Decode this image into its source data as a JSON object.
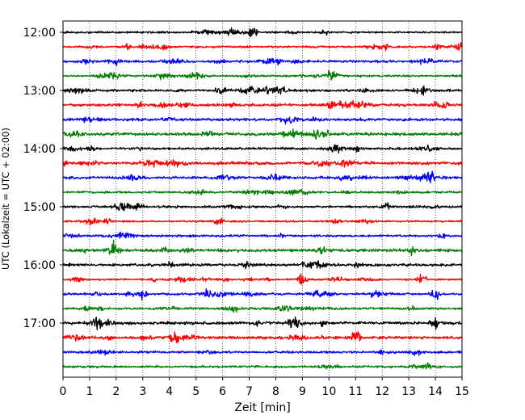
{
  "chart_data": {
    "type": "line",
    "subtype": "helicorder",
    "title": "",
    "xlabel": "Zeit  [min]",
    "ylabel": "UTC (Lokalzeit = UTC + 02:00)",
    "xlim": [
      0,
      15
    ],
    "x_ticks": [
      0,
      1,
      2,
      3,
      4,
      5,
      6,
      7,
      8,
      9,
      10,
      11,
      12,
      13,
      14,
      15
    ],
    "y_tick_labels": [
      "12:00",
      "13:00",
      "14:00",
      "15:00",
      "16:00",
      "17:00"
    ],
    "rows_per_hour": 4,
    "row_minutes": 15,
    "row_count": 24,
    "row_colors": [
      "#000000",
      "#ff0000",
      "#0000ff",
      "#008000"
    ],
    "grid_x": true,
    "grid_style": "dotted",
    "grid_y": false,
    "legend": "none",
    "notable_events": [
      {
        "row_start": "15:45",
        "minute": 1.9
      },
      {
        "row_start": "16:00",
        "minute": 6.9
      },
      {
        "row_start": "16:15",
        "minute": 9.0
      },
      {
        "row_start": "16:15",
        "minute": 13.5
      },
      {
        "row_start": "16:30",
        "minute": 3.0
      },
      {
        "row_start": "16:30",
        "minute": 14.0
      },
      {
        "row_start": "17:00",
        "minute": 14.0
      },
      {
        "row_start": "17:15",
        "minute": 11.0
      }
    ]
  }
}
